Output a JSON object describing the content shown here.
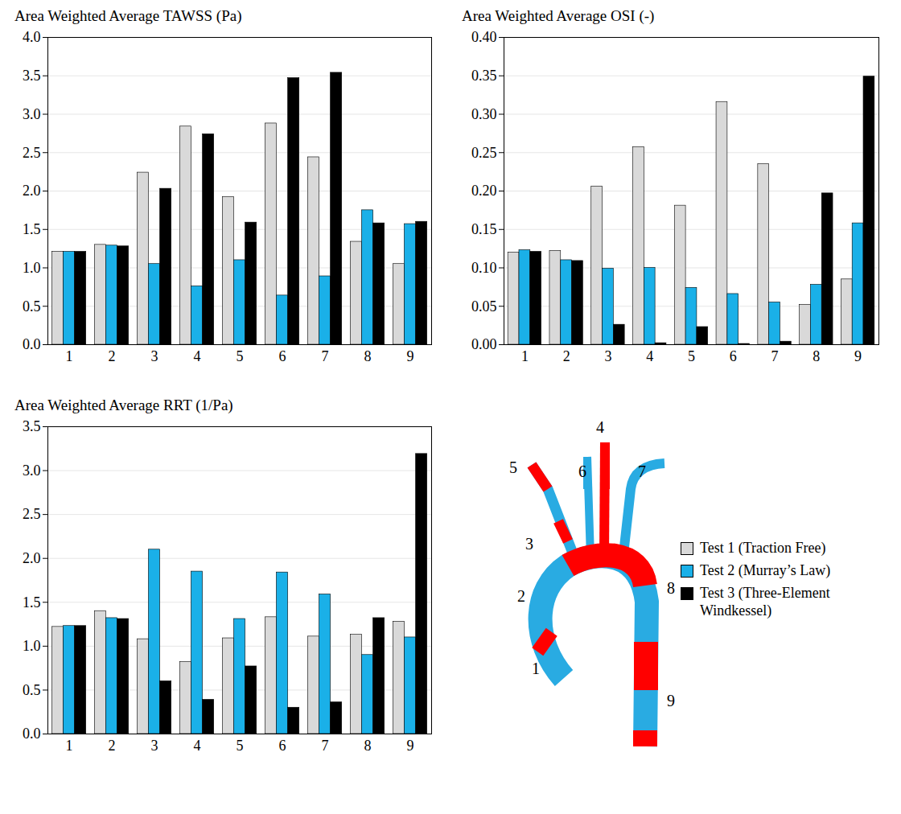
{
  "chart_data": [
    {
      "type": "bar",
      "title": "Area Weighted Average TAWSS (Pa)",
      "categories": [
        "1",
        "2",
        "3",
        "4",
        "5",
        "6",
        "7",
        "8",
        "9"
      ],
      "series": [
        {
          "name": "Test 1 (Traction Free)",
          "color": "#d9d9d9",
          "values": [
            1.21,
            1.3,
            2.24,
            2.84,
            1.92,
            2.88,
            2.44,
            1.34,
            1.05
          ]
        },
        {
          "name": "Test 2 (Murray’s Law)",
          "color": "#1ab0e8",
          "values": [
            1.21,
            1.29,
            1.05,
            0.76,
            1.1,
            0.64,
            0.89,
            1.75,
            1.57
          ]
        },
        {
          "name": "Test 3 (Three-Element Windkessel)",
          "color": "#000000",
          "values": [
            1.21,
            1.28,
            2.03,
            2.74,
            1.59,
            3.47,
            3.54,
            1.58,
            1.6
          ]
        }
      ],
      "ylim": [
        0,
        4
      ],
      "yticks": [
        {
          "value": 0,
          "label": "0.0"
        },
        {
          "value": 0.5,
          "label": "0.5"
        },
        {
          "value": 1,
          "label": "1.0"
        },
        {
          "value": 1.5,
          "label": "1.5"
        },
        {
          "value": 2,
          "label": "2.0"
        },
        {
          "value": 2.5,
          "label": "2.5"
        },
        {
          "value": 3,
          "label": "3.0"
        },
        {
          "value": 3.5,
          "label": "3.5"
        },
        {
          "value": 4,
          "label": "4.0"
        }
      ],
      "grid": true
    },
    {
      "type": "bar",
      "title": "Area Weighted Average OSI (-)",
      "categories": [
        "1",
        "2",
        "3",
        "4",
        "5",
        "6",
        "7",
        "8",
        "9"
      ],
      "series": [
        {
          "name": "Test 1 (Traction Free)",
          "color": "#d9d9d9",
          "values": [
            0.12,
            0.122,
            0.206,
            0.257,
            0.181,
            0.316,
            0.235,
            0.052,
            0.085
          ]
        },
        {
          "name": "Test 2 (Murray’s Law)",
          "color": "#1ab0e8",
          "values": [
            0.123,
            0.11,
            0.099,
            0.1,
            0.074,
            0.066,
            0.055,
            0.078,
            0.158
          ]
        },
        {
          "name": "Test 3 (Three-Element Windkessel)",
          "color": "#000000",
          "values": [
            0.121,
            0.109,
            0.026,
            0.002,
            0.023,
            0.001,
            0.004,
            0.197,
            0.349
          ]
        }
      ],
      "ylim": [
        0,
        0.4
      ],
      "yticks": [
        {
          "value": 0,
          "label": "0.00"
        },
        {
          "value": 0.05,
          "label": "0.05"
        },
        {
          "value": 0.1,
          "label": "0.10"
        },
        {
          "value": 0.15,
          "label": "0.15"
        },
        {
          "value": 0.2,
          "label": "0.20"
        },
        {
          "value": 0.25,
          "label": "0.25"
        },
        {
          "value": 0.3,
          "label": "0.30"
        },
        {
          "value": 0.35,
          "label": "0.35"
        },
        {
          "value": 0.4,
          "label": "0.40"
        }
      ],
      "grid": true
    },
    {
      "type": "bar",
      "title": "Area Weighted Average RRT (1/Pa)",
      "categories": [
        "1",
        "2",
        "3",
        "4",
        "5",
        "6",
        "7",
        "8",
        "9"
      ],
      "series": [
        {
          "name": "Test 1 (Traction Free)",
          "color": "#d9d9d9",
          "values": [
            1.22,
            1.4,
            1.08,
            0.82,
            1.09,
            1.33,
            1.11,
            1.13,
            1.28
          ]
        },
        {
          "name": "Test 2 (Murray’s Law)",
          "color": "#1ab0e8",
          "values": [
            1.23,
            1.32,
            2.1,
            1.85,
            1.31,
            1.84,
            1.59,
            0.9,
            1.1
          ]
        },
        {
          "name": "Test 3 (Three-Element Windkessel)",
          "color": "#000000",
          "values": [
            1.23,
            1.31,
            0.6,
            0.39,
            0.77,
            0.3,
            0.36,
            1.32,
            3.19
          ]
        }
      ],
      "ylim": [
        0,
        3.5
      ],
      "yticks": [
        {
          "value": 0,
          "label": "0.0"
        },
        {
          "value": 0.5,
          "label": "0.5"
        },
        {
          "value": 1,
          "label": "1.0"
        },
        {
          "value": 1.5,
          "label": "1.5"
        },
        {
          "value": 2,
          "label": "2.0"
        },
        {
          "value": 2.5,
          "label": "2.5"
        },
        {
          "value": 3,
          "label": "3.0"
        },
        {
          "value": 3.5,
          "label": "3.5"
        }
      ],
      "grid": true,
      "legend": "right"
    }
  ],
  "figure": {
    "region_labels": [
      "1",
      "2",
      "3",
      "4",
      "5",
      "6",
      "7",
      "8",
      "9"
    ]
  }
}
